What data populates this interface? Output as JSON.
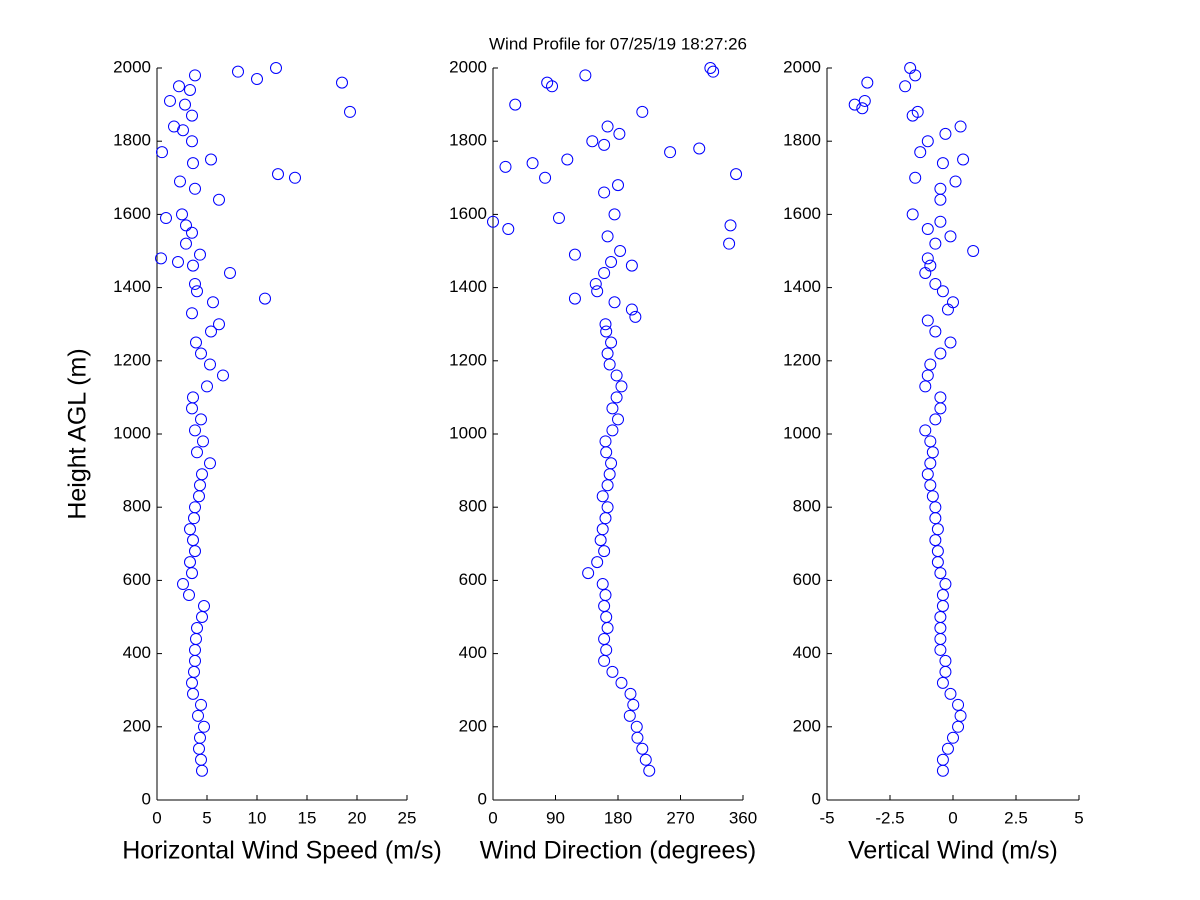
{
  "title": "Wind Profile for  07/25/19 18:27:26",
  "chart_data": [
    {
      "type": "scatter",
      "xlabel": "Horizontal Wind Speed (m/s)",
      "ylabel": "Height AGL (m)",
      "color": "#0000ff",
      "xlim": [
        0,
        25
      ],
      "xticks": [
        0,
        5,
        10,
        15,
        20,
        25
      ],
      "ylim": [
        0,
        2000
      ],
      "yticks": [
        0,
        200,
        400,
        600,
        800,
        1000,
        1200,
        1400,
        1600,
        1800,
        2000
      ],
      "x": [
        4.5,
        4.4,
        4.2,
        4.3,
        4.7,
        4.1,
        4.4,
        3.6,
        3.5,
        3.7,
        3.8,
        3.8,
        3.9,
        4.0,
        4.5,
        4.7,
        3.2,
        2.6,
        3.5,
        3.3,
        3.8,
        3.6,
        3.3,
        3.7,
        3.8,
        4.2,
        4.3,
        4.5,
        5.3,
        4.0,
        4.6,
        3.8,
        4.4,
        3.5,
        3.6,
        5.0,
        6.6,
        5.3,
        4.4,
        3.9,
        5.4,
        6.2,
        3.5,
        5.6,
        10.8,
        4.0,
        3.8,
        7.3,
        3.6,
        2.1,
        0.4,
        4.3,
        2.9,
        3.5,
        2.9,
        0.9,
        2.5,
        6.2,
        3.8,
        2.3,
        13.8,
        12.1,
        3.6,
        5.4,
        0.5,
        3.5,
        2.6,
        1.7,
        3.5,
        19.3,
        2.8,
        1.3,
        3.3,
        2.2,
        18.5,
        10.0,
        3.8,
        8.1,
        11.9
      ],
      "y": [
        80,
        110,
        140,
        170,
        200,
        230,
        260,
        290,
        320,
        350,
        380,
        410,
        440,
        470,
        500,
        530,
        560,
        590,
        620,
        650,
        680,
        710,
        740,
        770,
        800,
        830,
        860,
        890,
        920,
        950,
        980,
        1010,
        1040,
        1070,
        1100,
        1130,
        1160,
        1190,
        1220,
        1250,
        1280,
        1300,
        1330,
        1360,
        1370,
        1390,
        1410,
        1440,
        1460,
        1470,
        1480,
        1490,
        1520,
        1550,
        1570,
        1590,
        1600,
        1640,
        1670,
        1690,
        1700,
        1710,
        1740,
        1750,
        1770,
        1800,
        1830,
        1840,
        1870,
        1880,
        1900,
        1910,
        1940,
        1950,
        1960,
        1970,
        1980,
        1990,
        2000
      ]
    },
    {
      "type": "scatter",
      "xlabel": "Wind Direction (degrees)",
      "color": "#0000ff",
      "xlim": [
        0,
        360
      ],
      "xticks": [
        0,
        90,
        180,
        270,
        360
      ],
      "ylim": [
        0,
        2000
      ],
      "yticks": [
        0,
        200,
        400,
        600,
        800,
        1000,
        1200,
        1400,
        1600,
        1800,
        2000
      ],
      "x": [
        225,
        220,
        215,
        208,
        207,
        197,
        202,
        198,
        185,
        172,
        160,
        163,
        160,
        165,
        163,
        160,
        162,
        158,
        137,
        150,
        160,
        155,
        158,
        162,
        165,
        158,
        165,
        168,
        170,
        163,
        162,
        172,
        180,
        172,
        178,
        185,
        178,
        168,
        165,
        170,
        163,
        162,
        205,
        200,
        175,
        118,
        150,
        148,
        160,
        200,
        170,
        118,
        183,
        340,
        165,
        22,
        342,
        0,
        95,
        175,
        160,
        180,
        75,
        350,
        18,
        57,
        107,
        255,
        297,
        160,
        143,
        182,
        165,
        215,
        32,
        85,
        78,
        133,
        317,
        313
      ],
      "y": [
        80,
        110,
        140,
        170,
        200,
        230,
        260,
        290,
        320,
        350,
        380,
        410,
        440,
        470,
        500,
        530,
        560,
        590,
        620,
        650,
        680,
        710,
        740,
        770,
        800,
        830,
        860,
        890,
        920,
        950,
        980,
        1010,
        1040,
        1070,
        1100,
        1130,
        1160,
        1190,
        1220,
        1250,
        1280,
        1300,
        1320,
        1340,
        1360,
        1370,
        1390,
        1410,
        1440,
        1460,
        1470,
        1490,
        1500,
        1520,
        1540,
        1560,
        1570,
        1580,
        1590,
        1600,
        1660,
        1680,
        1700,
        1710,
        1730,
        1740,
        1750,
        1770,
        1780,
        1790,
        1800,
        1820,
        1840,
        1880,
        1900,
        1950,
        1960,
        1980,
        1990,
        2000
      ]
    },
    {
      "type": "scatter",
      "xlabel": "Vertical Wind (m/s)",
      "color": "#0000ff",
      "xlim": [
        -5,
        5
      ],
      "xticks": [
        -5,
        -2.5,
        0,
        2.5,
        5
      ],
      "ylim": [
        0,
        2000
      ],
      "yticks": [
        0,
        200,
        400,
        600,
        800,
        1000,
        1200,
        1400,
        1600,
        1800,
        2000
      ],
      "x": [
        -0.4,
        -0.4,
        -0.2,
        0.0,
        0.2,
        0.3,
        0.2,
        -0.1,
        -0.4,
        -0.3,
        -0.3,
        -0.5,
        -0.5,
        -0.5,
        -0.5,
        -0.4,
        -0.4,
        -0.3,
        -0.5,
        -0.6,
        -0.6,
        -0.7,
        -0.6,
        -0.7,
        -0.7,
        -0.8,
        -0.9,
        -1.0,
        -0.9,
        -0.8,
        -0.9,
        -1.1,
        -0.7,
        -0.5,
        -0.5,
        -1.1,
        -1.0,
        -0.9,
        -0.5,
        -0.1,
        -0.7,
        -1.0,
        -0.2,
        0.0,
        -0.4,
        -0.7,
        -1.1,
        -0.9,
        -1.0,
        0.8,
        -0.7,
        -0.1,
        -1.0,
        -0.5,
        -1.6,
        -0.5,
        -0.5,
        0.1,
        -1.5,
        -0.4,
        0.4,
        -1.3,
        -1.0,
        -0.3,
        0.3,
        -1.6,
        -1.4,
        -3.6,
        -3.9,
        -3.5,
        -1.9,
        -3.4,
        -1.5,
        -1.7
      ],
      "y": [
        80,
        110,
        140,
        170,
        200,
        230,
        260,
        290,
        320,
        350,
        380,
        410,
        440,
        470,
        500,
        530,
        560,
        590,
        620,
        650,
        680,
        710,
        740,
        770,
        800,
        830,
        860,
        890,
        920,
        950,
        980,
        1010,
        1040,
        1070,
        1100,
        1130,
        1160,
        1190,
        1220,
        1250,
        1280,
        1310,
        1340,
        1360,
        1390,
        1410,
        1440,
        1460,
        1480,
        1500,
        1520,
        1540,
        1560,
        1580,
        1600,
        1640,
        1670,
        1690,
        1700,
        1740,
        1750,
        1770,
        1800,
        1820,
        1840,
        1870,
        1880,
        1890,
        1900,
        1910,
        1950,
        1960,
        1980,
        2000
      ]
    }
  ]
}
